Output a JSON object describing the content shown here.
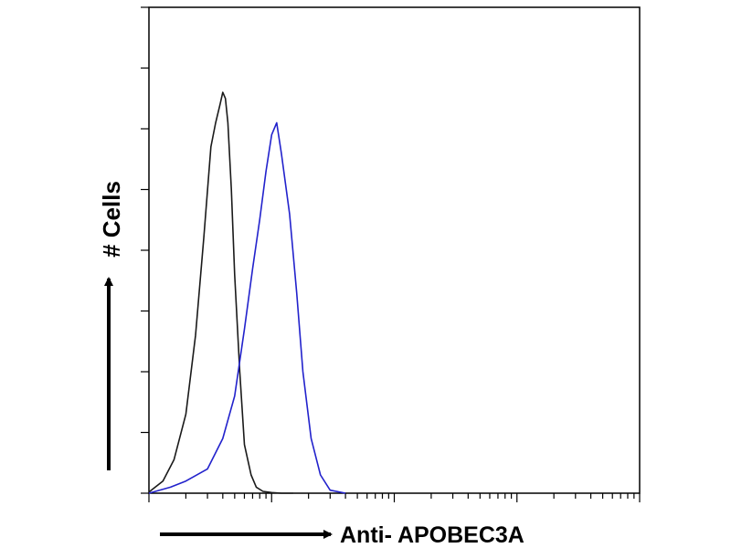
{
  "chart_data": {
    "type": "line",
    "title": "",
    "xlabel": "Anti- APOBEC3A",
    "ylabel": "# Cells",
    "x_scale": "log",
    "xlim": [
      1,
      10000
    ],
    "ylim": [
      0,
      8
    ],
    "x_tick_labels": [],
    "y_tick_labels": [],
    "grid": false,
    "legend": "none",
    "series": [
      {
        "color": "#1a1a1a",
        "x": [
          1.0,
          1.3,
          1.6,
          2.0,
          2.4,
          2.8,
          3.2,
          3.5,
          3.8,
          4.0,
          4.2,
          4.4,
          4.7,
          5.0,
          5.5,
          6.0,
          6.8,
          7.5,
          8.5,
          10.0,
          12.0,
          15.0
        ],
        "y": [
          0.02,
          0.2,
          0.55,
          1.3,
          2.6,
          4.2,
          5.7,
          6.1,
          6.4,
          6.6,
          6.5,
          6.1,
          5.0,
          3.6,
          2.0,
          0.8,
          0.3,
          0.1,
          0.03,
          0.01,
          0.0,
          0.0
        ]
      },
      {
        "color": "#2222cc",
        "x": [
          1.0,
          1.5,
          2.0,
          3.0,
          4.0,
          5.0,
          6.0,
          7.0,
          8.0,
          9.0,
          10.0,
          11.0,
          12.0,
          14.0,
          16.0,
          18.0,
          21.0,
          25.0,
          30.0,
          40.0
        ],
        "y": [
          0.0,
          0.1,
          0.2,
          0.4,
          0.9,
          1.6,
          2.7,
          3.7,
          4.5,
          5.3,
          5.9,
          6.1,
          5.6,
          4.6,
          3.3,
          2.0,
          0.9,
          0.3,
          0.05,
          0.0
        ]
      }
    ]
  }
}
